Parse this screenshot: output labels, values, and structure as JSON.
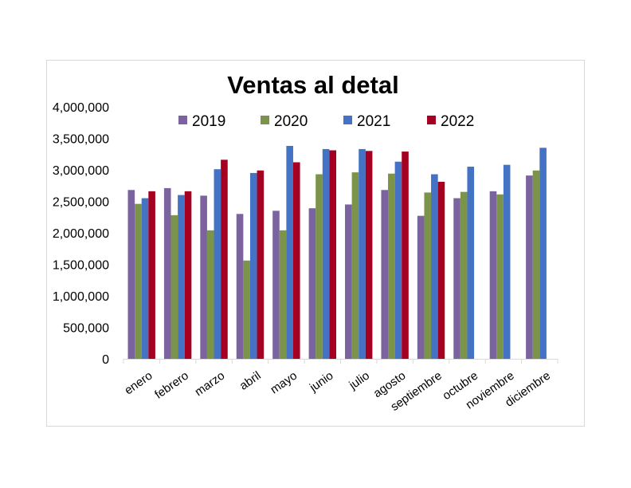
{
  "chart_data": {
    "type": "bar",
    "title": "Ventas al detal",
    "xlabel": "",
    "ylabel": "",
    "ylim": [
      0,
      4000000
    ],
    "yticks": [
      "0",
      "500,000",
      "1,000,000",
      "1,500,000",
      "2,000,000",
      "2,500,000",
      "3,000,000",
      "3,500,000",
      "4,000,000"
    ],
    "ytick_values": [
      0,
      500000,
      1000000,
      1500000,
      2000000,
      2500000,
      3000000,
      3500000,
      4000000
    ],
    "grid": false,
    "legend_position": "top",
    "categories": [
      "enero",
      "febrero",
      "marzo",
      "abril",
      "mayo",
      "junio",
      "julio",
      "agosto",
      "septiembre",
      "octubre",
      "noviembre",
      "diciembre"
    ],
    "series": [
      {
        "name": "2019",
        "color": "#7b63a0",
        "values": [
          2680000,
          2710000,
          2590000,
          2300000,
          2350000,
          2390000,
          2450000,
          2680000,
          2270000,
          2550000,
          2660000,
          2910000
        ]
      },
      {
        "name": "2020",
        "color": "#7b944a",
        "values": [
          2460000,
          2280000,
          2040000,
          1560000,
          2040000,
          2930000,
          2960000,
          2940000,
          2640000,
          2650000,
          2610000,
          2990000
        ]
      },
      {
        "name": "2021",
        "color": "#4472c4",
        "values": [
          2550000,
          2600000,
          3010000,
          2950000,
          3380000,
          3330000,
          3330000,
          3130000,
          2930000,
          3050000,
          3080000,
          3350000
        ]
      },
      {
        "name": "2022",
        "color": "#a50021",
        "values": [
          2660000,
          2660000,
          3160000,
          2990000,
          3120000,
          3310000,
          3300000,
          3290000,
          2810000,
          null,
          null,
          null
        ]
      }
    ]
  }
}
